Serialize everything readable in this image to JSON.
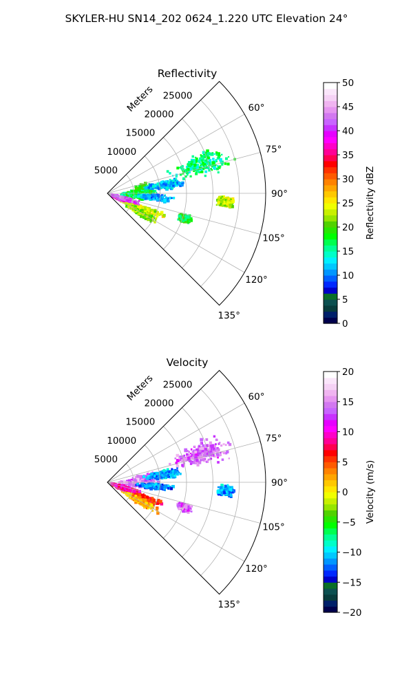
{
  "figure": {
    "suptitle": "SKYLER-HU  SN14_202  0624_1.220 UTC Elevation 24°"
  },
  "chart_data": [
    {
      "type": "heatmap",
      "subtype": "polar_sector",
      "title": "Reflectivity",
      "radial_label": "Meters",
      "radial_ticks": [
        5000,
        10000,
        15000,
        20000,
        25000
      ],
      "radial_tick_labels": [
        "5000",
        "10000",
        "15000",
        "20000",
        "25000"
      ],
      "rlim": [
        0,
        30000
      ],
      "theta_ticks": [
        60,
        75,
        90,
        105,
        120,
        135
      ],
      "theta_tick_labels": [
        "60°",
        "75°",
        "90°",
        "105°",
        "120°",
        "135°"
      ],
      "theta_range": [
        45,
        135
      ],
      "grid": true,
      "colorbar": {
        "label": "Reflectivity dBZ",
        "range": [
          0,
          50
        ],
        "ticks": [
          0,
          5,
          10,
          15,
          20,
          25,
          30,
          35,
          40,
          45,
          50
        ],
        "tick_labels": [
          "0",
          "5",
          "10",
          "15",
          "20",
          "25",
          "30",
          "35",
          "40",
          "45",
          "50"
        ]
      },
      "echo_regions": [
        {
          "az_center": 86,
          "r_center": 7000,
          "az_width": 14,
          "r_width": 3800,
          "value": 18
        },
        {
          "az_center": 92,
          "r_center": 5500,
          "az_width": 12,
          "r_width": 5000,
          "value": 17
        },
        {
          "az_center": 73,
          "r_center": 18500,
          "az_width": 10,
          "r_width": 9000,
          "value": 16
        },
        {
          "az_center": 82,
          "r_center": 11000,
          "az_width": 6,
          "r_width": 5500,
          "value": 12
        },
        {
          "az_center": 95,
          "r_center": 9000,
          "az_width": 5,
          "r_width": 5000,
          "value": 11
        },
        {
          "az_center": 94,
          "r_center": 22500,
          "az_width": 4,
          "r_width": 2500,
          "value": 23
        },
        {
          "az_center": 113,
          "r_center": 6500,
          "az_width": 7,
          "r_width": 8000,
          "value": 24
        },
        {
          "az_center": 120,
          "r_center": 7000,
          "az_width": 7,
          "r_width": 6000,
          "value": 22
        },
        {
          "az_center": 113,
          "r_center": 2500,
          "az_width": 7,
          "r_width": 2000,
          "value": 38
        },
        {
          "az_center": 107,
          "r_center": 3500,
          "az_width": 6,
          "r_width": 4000,
          "value": 42
        },
        {
          "az_center": 108,
          "r_center": 15500,
          "az_width": 4,
          "r_width": 2000,
          "value": 18
        }
      ]
    },
    {
      "type": "heatmap",
      "subtype": "polar_sector",
      "title": "Velocity",
      "radial_label": "Meters",
      "radial_ticks": [
        5000,
        10000,
        15000,
        20000,
        25000
      ],
      "radial_tick_labels": [
        "5000",
        "10000",
        "15000",
        "20000",
        "25000"
      ],
      "rlim": [
        0,
        30000
      ],
      "theta_ticks": [
        60,
        75,
        90,
        105,
        120,
        135
      ],
      "theta_tick_labels": [
        "60°",
        "75°",
        "90°",
        "105°",
        "120°",
        "135°"
      ],
      "theta_range": [
        45,
        135
      ],
      "grid": true,
      "colorbar": {
        "label": "Velocity (m/s)",
        "range": [
          -20,
          20
        ],
        "ticks": [
          -20,
          -15,
          -10,
          -5,
          0,
          5,
          10,
          15,
          20
        ],
        "tick_labels": [
          "−20",
          "−15",
          "−10",
          "−5",
          "0",
          "5",
          "10",
          "15",
          "20"
        ]
      },
      "echo_regions": [
        {
          "az_center": 86,
          "r_center": 7000,
          "az_width": 14,
          "r_width": 3800,
          "value": 14
        },
        {
          "az_center": 92,
          "r_center": 5500,
          "az_width": 12,
          "r_width": 5000,
          "value": 15
        },
        {
          "az_center": 73,
          "r_center": 18500,
          "az_width": 10,
          "r_width": 9000,
          "value": 14
        },
        {
          "az_center": 82,
          "r_center": 11000,
          "az_width": 6,
          "r_width": 5500,
          "value": -11
        },
        {
          "az_center": 95,
          "r_center": 9000,
          "az_width": 5,
          "r_width": 5000,
          "value": -12
        },
        {
          "az_center": 94,
          "r_center": 22500,
          "az_width": 4,
          "r_width": 2500,
          "value": -11
        },
        {
          "az_center": 113,
          "r_center": 6500,
          "az_width": 7,
          "r_width": 8000,
          "value": 6
        },
        {
          "az_center": 120,
          "r_center": 7000,
          "az_width": 7,
          "r_width": 6000,
          "value": 2
        },
        {
          "az_center": 113,
          "r_center": 2500,
          "az_width": 7,
          "r_width": 2000,
          "value": 8
        },
        {
          "az_center": 107,
          "r_center": 3500,
          "az_width": 6,
          "r_width": 4000,
          "value": 9
        },
        {
          "az_center": 108,
          "r_center": 15500,
          "az_width": 4,
          "r_width": 2000,
          "value": 14
        }
      ]
    }
  ]
}
